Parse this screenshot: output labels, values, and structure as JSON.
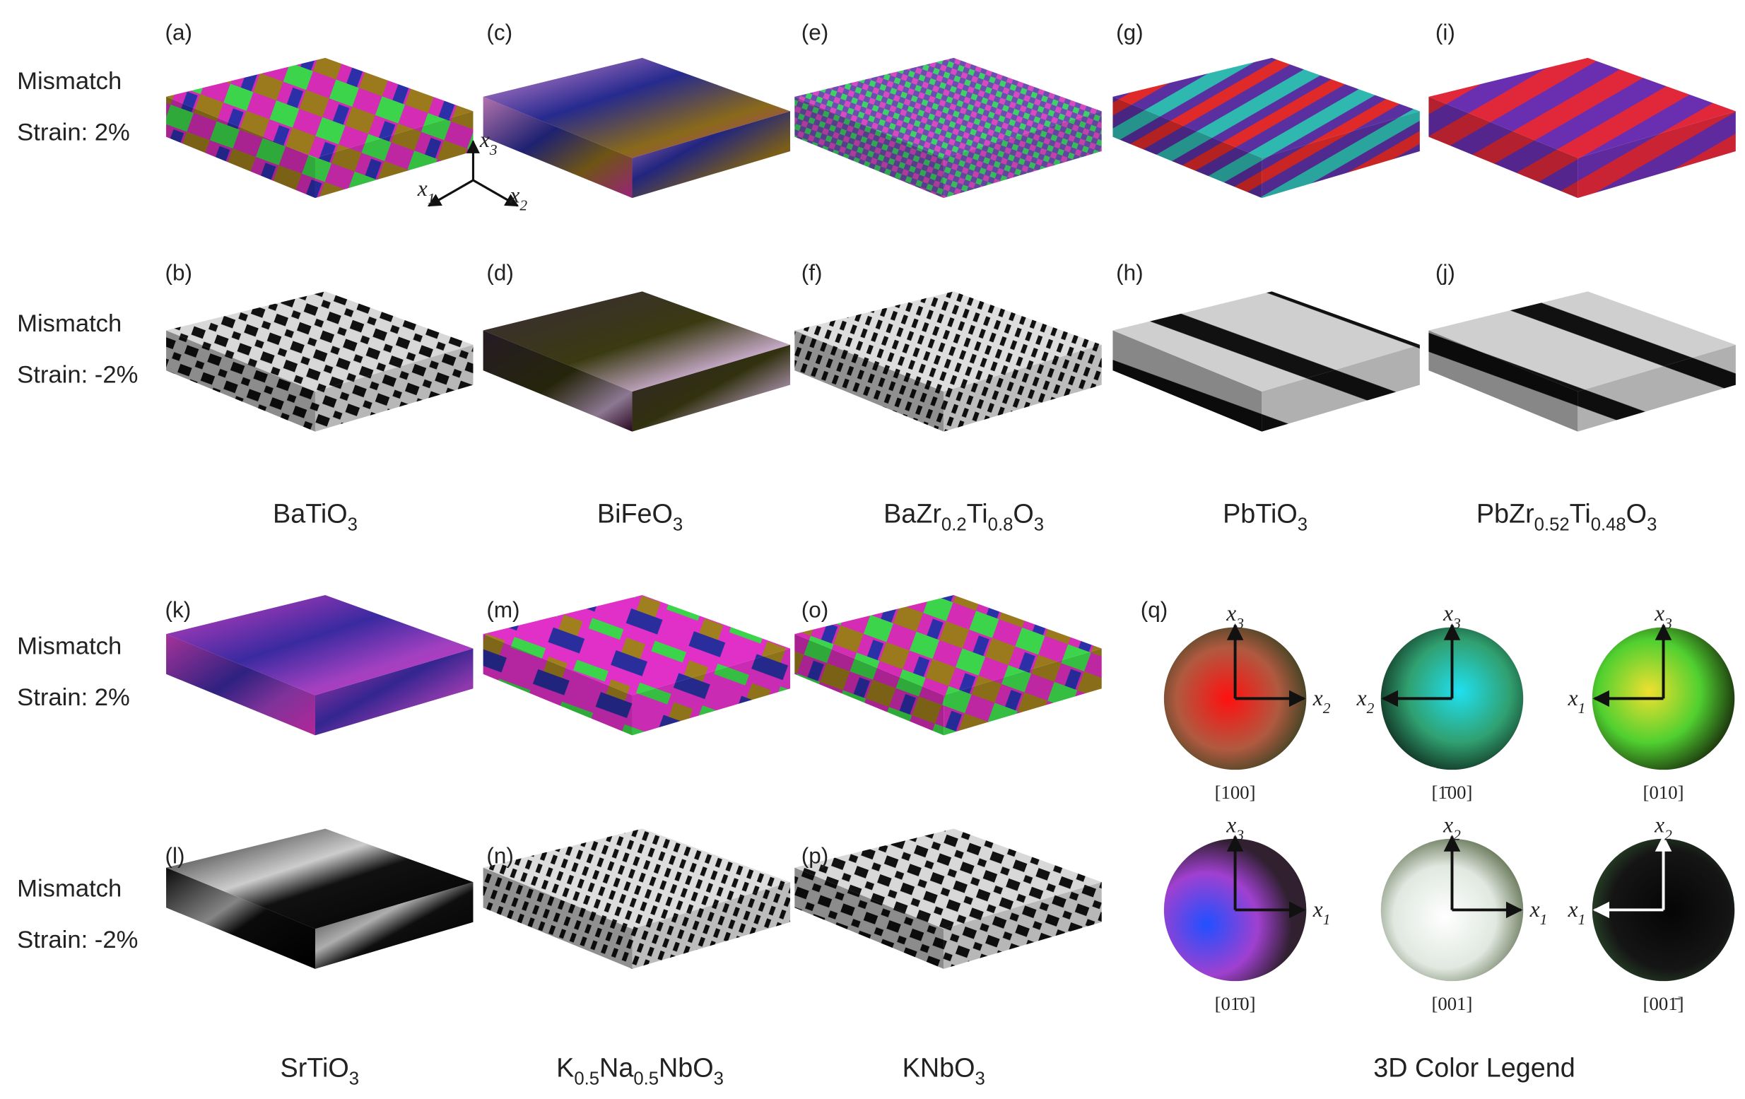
{
  "row_labels": [
    {
      "line1": "Mismatch",
      "line2": "Strain: 2%"
    },
    {
      "line1": "Mismatch",
      "line2": "Strain: -2%"
    },
    {
      "line1": "Mismatch",
      "line2": "Strain: 2%"
    },
    {
      "line1": "Mismatch",
      "line2": "Strain: -2%"
    }
  ],
  "panel_labels": [
    "(a)",
    "(b)",
    "(c)",
    "(d)",
    "(e)",
    "(f)",
    "(g)",
    "(h)",
    "(i)",
    "(j)",
    "(k)",
    "(l)",
    "(m)",
    "(n)",
    "(o)",
    "(p)",
    "(q)"
  ],
  "materials": [
    {
      "parts": [
        "BaTiO",
        "3"
      ]
    },
    {
      "parts": [
        "BiFeO",
        "3"
      ]
    },
    {
      "parts": [
        "BaZr",
        "0.2",
        "Ti",
        "0.8",
        "O",
        "3"
      ]
    },
    {
      "parts": [
        "PbTiO",
        "3"
      ]
    },
    {
      "parts": [
        "PbZr",
        "0.52",
        "Ti",
        "0.48",
        "O",
        "3"
      ]
    },
    {
      "parts": [
        "SrTiO",
        "3"
      ]
    },
    {
      "parts": [
        "K",
        "0.5",
        "Na",
        "0.5",
        "NbO",
        "3"
      ]
    },
    {
      "parts": [
        "KNbO",
        "3"
      ]
    }
  ],
  "axes": {
    "x3": [
      "x",
      "3"
    ],
    "x1": [
      "x",
      "1"
    ],
    "x2": [
      "x",
      "2"
    ]
  },
  "legend": {
    "title": "3D Color Legend",
    "spheres": [
      {
        "vertical": [
          "x",
          "3"
        ],
        "horizontal": [
          "x",
          "2"
        ],
        "direction": "[100]"
      },
      {
        "vertical": [
          "x",
          "3"
        ],
        "horizontal": [
          "x",
          "2"
        ],
        "direction": "[1̄00]"
      },
      {
        "vertical": [
          "x",
          "3"
        ],
        "horizontal": [
          "x",
          "1"
        ],
        "direction": "[010]"
      },
      {
        "vertical": [
          "x",
          "3"
        ],
        "horizontal": [
          "x",
          "1"
        ],
        "direction": "[01̄0]"
      },
      {
        "vertical": [
          "x",
          "2"
        ],
        "horizontal": [
          "x",
          "1"
        ],
        "direction": "[001]"
      },
      {
        "vertical": [
          "x",
          "2"
        ],
        "horizontal": [
          "x",
          "1"
        ],
        "direction": "[001̄]"
      }
    ]
  }
}
